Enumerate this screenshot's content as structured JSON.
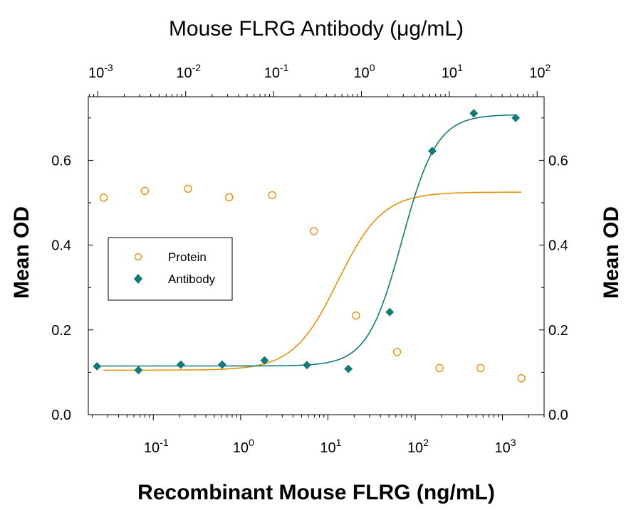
{
  "chart_data": {
    "type": "scatter",
    "title_top_axis": "Mouse FLRG Antibody (μg/mL)",
    "xlabel": "Recombinant Mouse FLRG (ng/mL)",
    "ylabel": "Mean OD",
    "ylabel_right": "Mean OD",
    "x_scale": "log",
    "xlim": [
      0.018,
      3000
    ],
    "ylim": [
      0,
      0.75
    ],
    "y_ticks": [
      "0.0",
      "0.2",
      "0.4",
      "0.6"
    ],
    "x_bottom_ticks": [
      {
        "base": "10",
        "exp": "-1",
        "value": 0.1
      },
      {
        "base": "10",
        "exp": "0",
        "value": 1
      },
      {
        "base": "10",
        "exp": "1",
        "value": 10
      },
      {
        "base": "10",
        "exp": "2",
        "value": 100
      },
      {
        "base": "10",
        "exp": "3",
        "value": 1000
      }
    ],
    "top_axis": {
      "scale": "log",
      "xlim": [
        0.00078,
        120
      ],
      "ticks": [
        {
          "base": "10",
          "exp": "-3",
          "value": 0.001
        },
        {
          "base": "10",
          "exp": "-2",
          "value": 0.01
        },
        {
          "base": "10",
          "exp": "-1",
          "value": 0.1
        },
        {
          "base": "10",
          "exp": "0",
          "value": 1
        },
        {
          "base": "10",
          "exp": "1",
          "value": 10
        },
        {
          "base": "10",
          "exp": "2",
          "value": 100
        }
      ]
    },
    "legend": {
      "position": "left"
    },
    "series": [
      {
        "name": "Protein",
        "axis": "bottom",
        "marker": "open-circle",
        "color": "#E8900A",
        "x": [
          0.027,
          0.08,
          0.25,
          0.74,
          2.3,
          6.9,
          21,
          62,
          190,
          560,
          1650
        ],
        "y": [
          0.512,
          0.528,
          0.533,
          0.513,
          0.518,
          0.433,
          0.234,
          0.148,
          0.11,
          0.11,
          0.086
        ],
        "fit": {
          "top": 0.525,
          "bottom": 0.105,
          "ec50": 13,
          "hill": 1.7
        }
      },
      {
        "name": "Antibody",
        "axis": "top",
        "marker": "filled-diamond",
        "color": "#127A78",
        "x": [
          0.00098,
          0.0029,
          0.0088,
          0.026,
          0.079,
          0.24,
          0.71,
          2.1,
          6.4,
          19,
          57
        ],
        "y": [
          0.114,
          0.105,
          0.118,
          0.118,
          0.128,
          0.117,
          0.108,
          0.242,
          0.622,
          0.711,
          0.7
        ],
        "fit": {
          "top": 0.708,
          "bottom": 0.115,
          "ec50": 2.9,
          "hill": 2.2
        }
      }
    ]
  }
}
